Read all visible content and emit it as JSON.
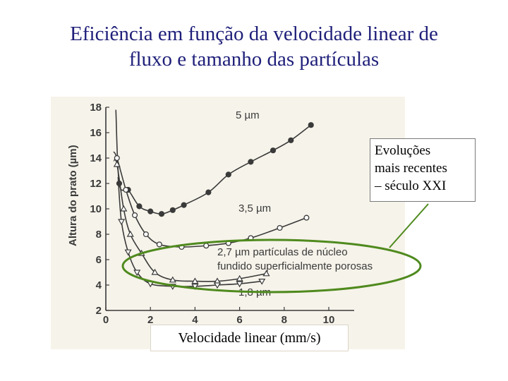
{
  "title_lines": [
    "Eficiência em função da velocidade linear de",
    "fluxo e tamanho das partículas"
  ],
  "callout": {
    "lines": [
      "Evoluções",
      "mais recentes",
      "– século XXI"
    ]
  },
  "colors": {
    "title": "#1f1f7a",
    "highlight_ellipse": "#4f8a1e",
    "plot_ink": "#3a3a3a",
    "scan_background": "#f6f3ea"
  },
  "chart_data": {
    "type": "line",
    "title": "",
    "xlabel": "Velocidade linear (mm/s)",
    "ylabel": "Altura do prato (µm)",
    "xlim": [
      0,
      10
    ],
    "ylim": [
      2,
      18
    ],
    "xticks": [
      "0",
      "2",
      "4",
      "6",
      "8",
      "10"
    ],
    "yticks": [
      "2",
      "4",
      "6",
      "8",
      "10",
      "12",
      "14",
      "16",
      "18"
    ],
    "grid": false,
    "series": [
      {
        "name": "5 µm",
        "marker": "filled-circle",
        "x": [
          0.6,
          1.0,
          1.5,
          2.0,
          2.5,
          3.0,
          3.5,
          4.6,
          5.5,
          6.5,
          7.5,
          8.3,
          9.2
        ],
        "y": [
          12.0,
          11.5,
          10.2,
          9.8,
          9.6,
          9.9,
          10.3,
          11.3,
          12.7,
          13.7,
          14.6,
          15.4,
          16.6
        ]
      },
      {
        "name": "3,5 µm",
        "marker": "open-circle",
        "x": [
          0.5,
          0.9,
          1.3,
          1.8,
          2.4,
          3.4,
          4.5,
          5.5,
          6.5,
          7.8,
          9.0
        ],
        "y": [
          14.0,
          11.5,
          9.5,
          8.0,
          7.2,
          7.0,
          7.1,
          7.3,
          7.7,
          8.5,
          9.3
        ]
      },
      {
        "name": "2,7 µm partículas de núcleo fundido superficialmente porosas",
        "marker": "open-triangle",
        "x": [
          0.5,
          0.8,
          1.1,
          1.6,
          2.2,
          3.0,
          4.0,
          5.0,
          6.0,
          7.2
        ],
        "y": [
          13.5,
          10.0,
          8.0,
          6.5,
          5.0,
          4.4,
          4.3,
          4.3,
          4.5,
          4.9
        ]
      },
      {
        "name": "1,8 µm",
        "marker": "open-triangle-down",
        "x": [
          0.7,
          1.0,
          1.4,
          2.0,
          3.0,
          4.0,
          5.0,
          6.0,
          7.0
        ],
        "y": [
          9.0,
          6.6,
          5.0,
          4.1,
          3.9,
          3.9,
          4.0,
          4.1,
          4.3
        ]
      }
    ],
    "annotations": [
      "5 µm",
      "3,5 µm",
      "2,7 µm partículas de núcleo",
      "fundido superficialmente porosas",
      "1,8 µm"
    ]
  }
}
